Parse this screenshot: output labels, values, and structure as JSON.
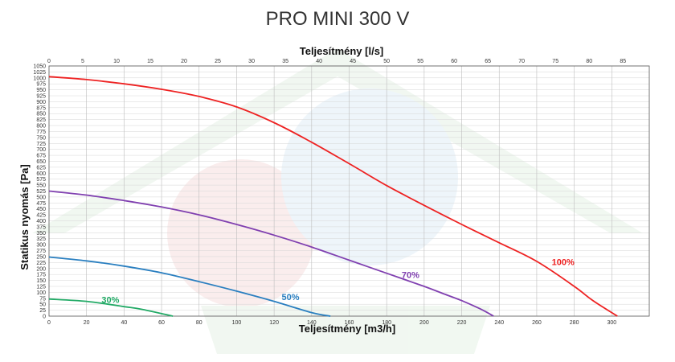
{
  "chart_data": {
    "type": "line",
    "title": "PRO MINI 300 V",
    "xlabel": "Teljesítmény [m3/h]",
    "x2label": "Teljesítmény [l/s]",
    "ylabel": "Statikus nyomás [Pa]",
    "xlim": [
      0,
      320
    ],
    "x2lim": [
      0,
      88.9
    ],
    "ylim": [
      0,
      1050
    ],
    "xticks": [
      0,
      20,
      40,
      60,
      80,
      100,
      120,
      140,
      160,
      180,
      200,
      220,
      240,
      260,
      280,
      300
    ],
    "x2ticks": [
      0,
      5,
      10,
      15,
      20,
      25,
      30,
      35,
      40,
      45,
      50,
      55,
      60,
      65,
      70,
      75,
      80,
      85
    ],
    "yticks": [
      0,
      25,
      50,
      75,
      100,
      125,
      150,
      175,
      200,
      225,
      250,
      275,
      300,
      325,
      350,
      375,
      400,
      425,
      450,
      475,
      500,
      525,
      550,
      575,
      600,
      625,
      650,
      675,
      700,
      725,
      750,
      775,
      800,
      825,
      850,
      875,
      900,
      925,
      950,
      975,
      1000,
      1025,
      1050
    ],
    "grid": true,
    "series": [
      {
        "name": "100%",
        "color": "#ee2222",
        "label_at": [
          268,
          215
        ],
        "points": [
          [
            0,
            1005
          ],
          [
            20,
            993
          ],
          [
            40,
            975
          ],
          [
            60,
            952
          ],
          [
            80,
            922
          ],
          [
            100,
            878
          ],
          [
            120,
            812
          ],
          [
            140,
            730
          ],
          [
            160,
            640
          ],
          [
            180,
            548
          ],
          [
            200,
            465
          ],
          [
            220,
            385
          ],
          [
            240,
            308
          ],
          [
            260,
            230
          ],
          [
            280,
            125
          ],
          [
            290,
            65
          ],
          [
            303,
            0
          ]
        ]
      },
      {
        "name": "70%",
        "color": "#8040b0",
        "label_at": [
          188,
          160
        ],
        "points": [
          [
            0,
            525
          ],
          [
            20,
            508
          ],
          [
            40,
            485
          ],
          [
            60,
            458
          ],
          [
            80,
            425
          ],
          [
            100,
            385
          ],
          [
            120,
            340
          ],
          [
            140,
            290
          ],
          [
            160,
            235
          ],
          [
            180,
            180
          ],
          [
            200,
            125
          ],
          [
            210,
            95
          ],
          [
            220,
            65
          ],
          [
            230,
            30
          ],
          [
            237,
            0
          ]
        ]
      },
      {
        "name": "50%",
        "color": "#2a7fc0",
        "label_at": [
          124,
          68
        ],
        "points": [
          [
            0,
            248
          ],
          [
            20,
            232
          ],
          [
            40,
            210
          ],
          [
            60,
            182
          ],
          [
            80,
            145
          ],
          [
            100,
            105
          ],
          [
            120,
            62
          ],
          [
            140,
            15
          ],
          [
            150,
            0
          ]
        ]
      },
      {
        "name": "30%",
        "color": "#22aa66",
        "label_at": [
          28,
          55
        ],
        "points": [
          [
            0,
            72
          ],
          [
            20,
            62
          ],
          [
            40,
            40
          ],
          [
            50,
            28
          ],
          [
            66,
            0
          ]
        ]
      }
    ]
  }
}
